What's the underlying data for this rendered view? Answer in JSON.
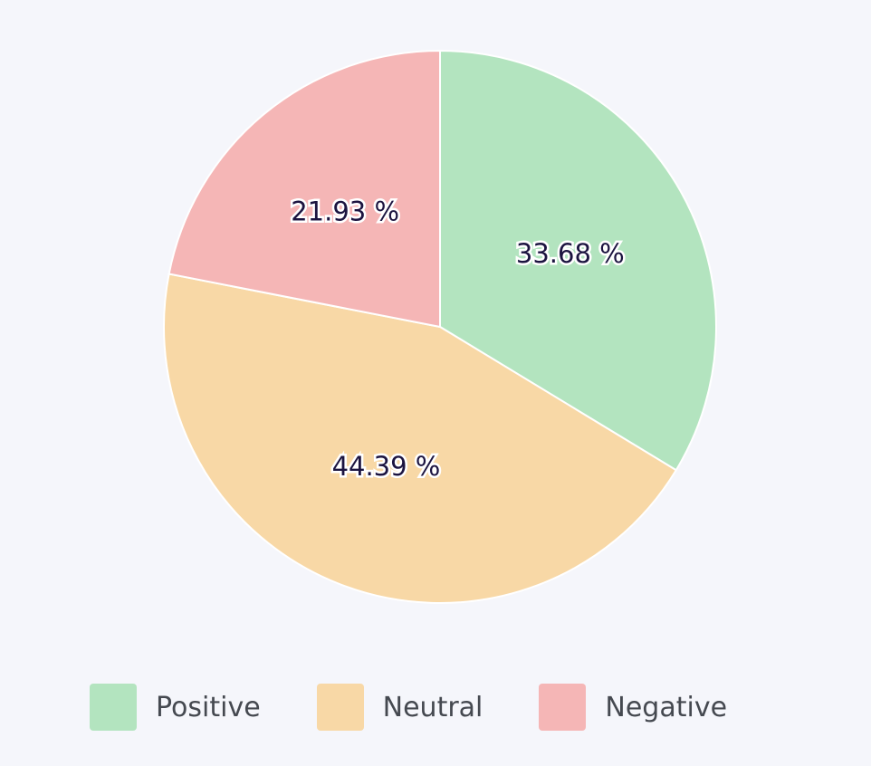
{
  "chart_data": {
    "type": "pie",
    "start_angle_deg": 0,
    "direction": "clockwise",
    "slices": [
      {
        "name": "Positive",
        "value": 33.68,
        "label": "33.68 %",
        "color": "#b3e4bf"
      },
      {
        "name": "Neutral",
        "value": 44.39,
        "label": "44.39 %",
        "color": "#f8d8a6"
      },
      {
        "name": "Negative",
        "value": 21.93,
        "label": "21.93 %",
        "color": "#f5b6b6"
      }
    ],
    "legend": {
      "placement": "bottom",
      "items": [
        {
          "label": "Positive",
          "color": "#b3e4bf"
        },
        {
          "label": "Neutral",
          "color": "#f8d8a6"
        },
        {
          "label": "Negative",
          "color": "#f5b6b6"
        }
      ]
    }
  }
}
